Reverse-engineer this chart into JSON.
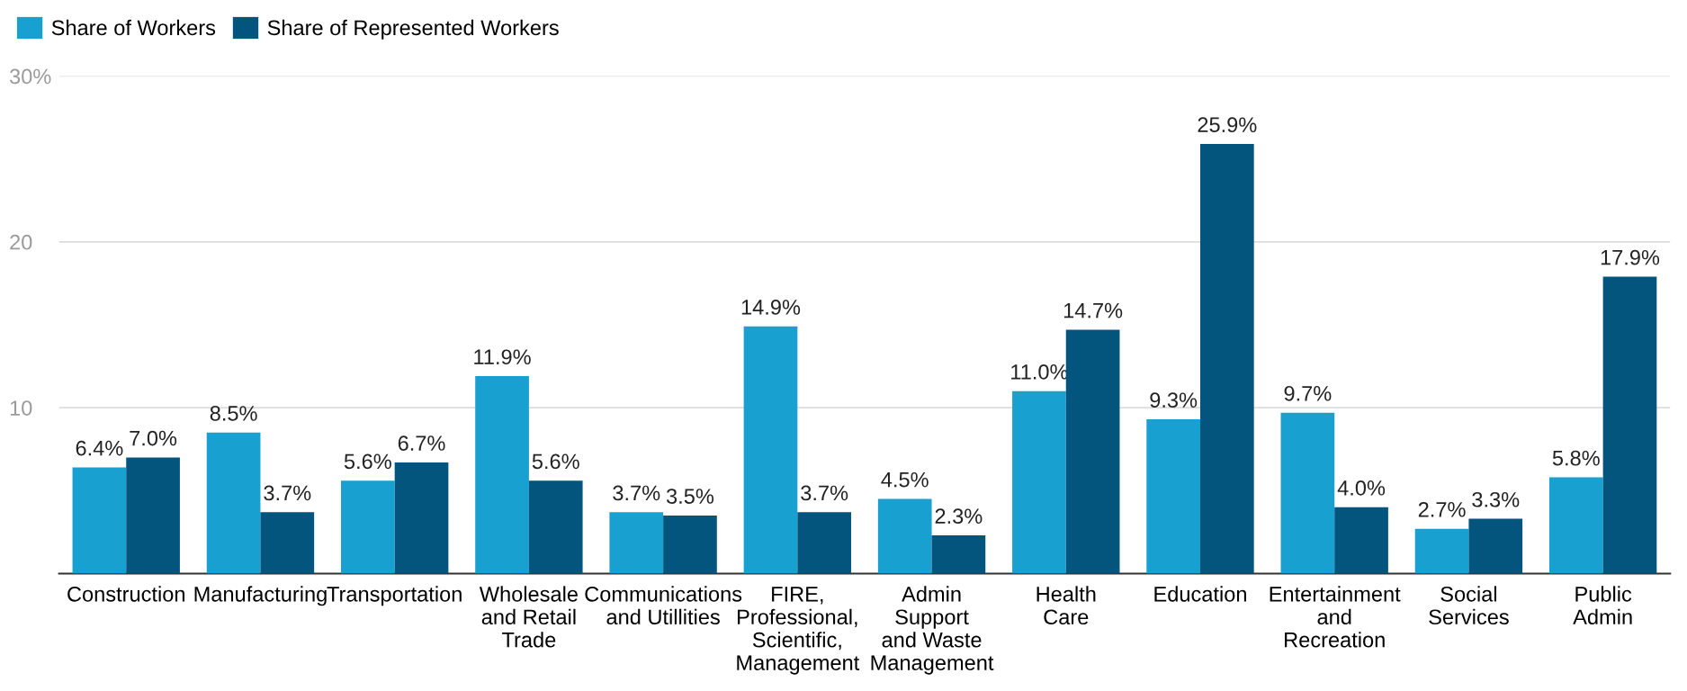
{
  "chart_data": {
    "type": "bar",
    "categories": [
      "Construction",
      "Manufacturing",
      "Transportation",
      "Wholesale\nand Retail\nTrade",
      "Communications\nand Utillities",
      "FIRE,\nProfessional,\nScientific,\nManagement",
      "Admin\nSupport\nand Waste\nManagement",
      "Health\nCare",
      "Education",
      "Entertainment\nand\nRecreation",
      "Social\nServices",
      "Public\nAdmin"
    ],
    "series": [
      {
        "name": "Share of Workers",
        "color": "#17a0d0",
        "values": [
          6.4,
          8.5,
          5.6,
          11.9,
          3.7,
          14.9,
          4.5,
          11.0,
          9.3,
          9.7,
          2.7,
          5.8
        ],
        "value_labels": [
          "6.4%",
          "8.5%",
          "5.6%",
          "11.9%",
          "3.7%",
          "14.9%",
          "4.5%",
          "11.0%",
          "9.3%",
          "9.7%",
          "2.7%",
          "5.8%"
        ]
      },
      {
        "name": "Share of Represented Workers",
        "color": "#03557e",
        "values": [
          7.0,
          3.7,
          6.7,
          5.6,
          3.5,
          3.7,
          2.3,
          14.7,
          25.9,
          4.0,
          3.3,
          17.9
        ],
        "value_labels": [
          "7.0%",
          "3.7%",
          "6.7%",
          "5.6%",
          "3.5%",
          "3.7%",
          "2.3%",
          "14.7%",
          "25.9%",
          "4.0%",
          "3.3%",
          "17.9%"
        ]
      }
    ],
    "ylim": [
      0,
      30
    ],
    "yticks": [
      10,
      20,
      {
        "value": 30,
        "label": "30%"
      }
    ],
    "grid": "y",
    "legend": "top left"
  }
}
